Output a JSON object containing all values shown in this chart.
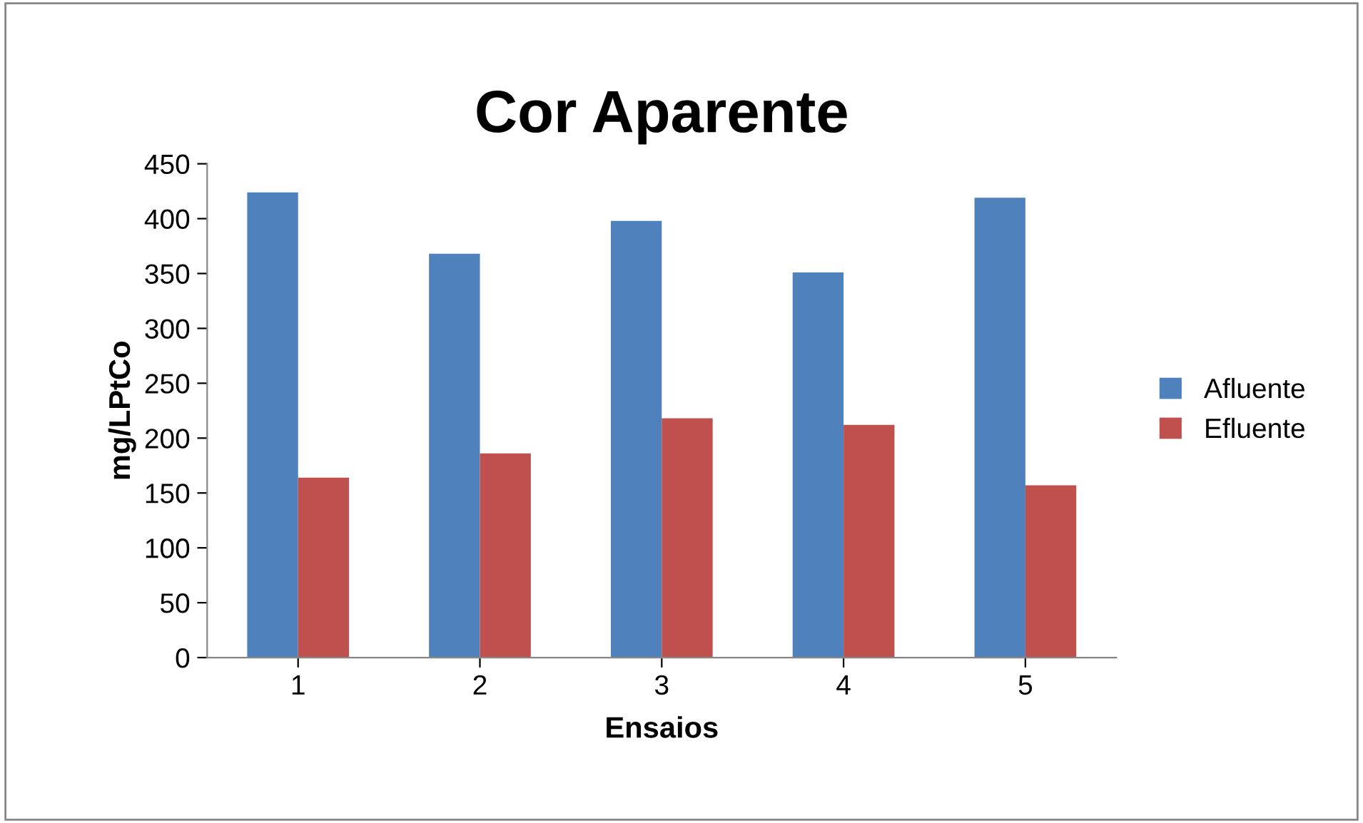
{
  "chart_data": {
    "type": "bar",
    "title": "Cor Aparente",
    "xlabel": "Ensaios",
    "ylabel": "mg/LPtCo",
    "categories": [
      "1",
      "2",
      "3",
      "4",
      "5"
    ],
    "series": [
      {
        "name": "Afluente",
        "color": "#4f81bd",
        "values": [
          424,
          368,
          398,
          351,
          419
        ]
      },
      {
        "name": "Efluente",
        "color": "#c0504d",
        "values": [
          164,
          186,
          218,
          212,
          157
        ]
      }
    ],
    "ylim": [
      0,
      450
    ],
    "yticks": [
      0,
      50,
      100,
      150,
      200,
      250,
      300,
      350,
      400,
      450
    ],
    "grid": false,
    "legend": "right"
  }
}
